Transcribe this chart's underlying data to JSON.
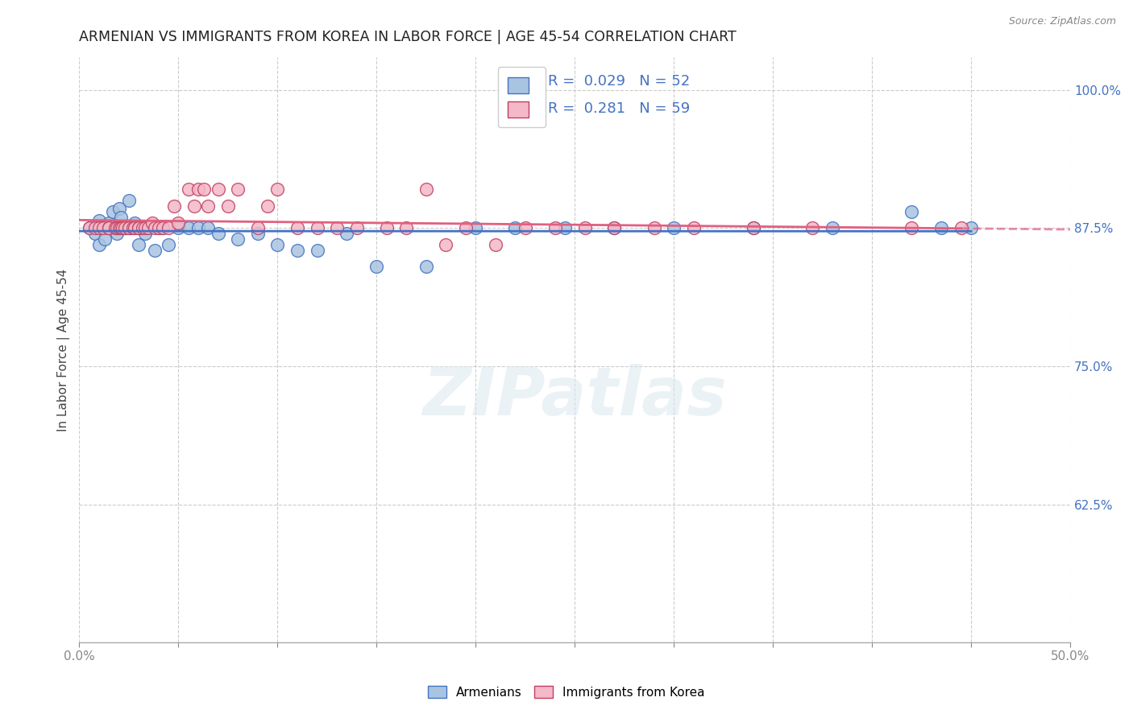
{
  "title": "ARMENIAN VS IMMIGRANTS FROM KOREA IN LABOR FORCE | AGE 45-54 CORRELATION CHART",
  "source": "Source: ZipAtlas.com",
  "ylabel": "In Labor Force | Age 45-54",
  "xlim": [
    0.0,
    0.5
  ],
  "ylim": [
    0.5,
    1.03
  ],
  "xticks": [
    0.0,
    0.05,
    0.1,
    0.15,
    0.2,
    0.25,
    0.3,
    0.35,
    0.4,
    0.45,
    0.5
  ],
  "xticklabels": [
    "0.0%",
    "",
    "",
    "",
    "",
    "",
    "",
    "",
    "",
    "",
    "50.0%"
  ],
  "yticks_right": [
    0.625,
    0.75,
    0.875,
    1.0
  ],
  "ytick_labels_right": [
    "62.5%",
    "75.0%",
    "87.5%",
    "100.0%"
  ],
  "blue_R": "0.029",
  "blue_N": "52",
  "pink_R": "0.281",
  "pink_N": "59",
  "blue_color": "#a8c4e0",
  "pink_color": "#f4b8c8",
  "blue_line_color": "#4472c4",
  "pink_line_color": "#e06080",
  "blue_edge_color": "#4472c4",
  "pink_edge_color": "#c04060",
  "legend_label_blue": "Armenians",
  "legend_label_pink": "Immigrants from Korea",
  "watermark": "ZIPatlas",
  "title_color": "#222222",
  "axis_color": "#4472c4",
  "background_color": "#ffffff",
  "grid_color": "#cccccc",
  "blue_scatter_x": [
    0.005,
    0.008,
    0.01,
    0.01,
    0.012,
    0.013,
    0.015,
    0.015,
    0.017,
    0.018,
    0.019,
    0.02,
    0.02,
    0.021,
    0.022,
    0.023,
    0.025,
    0.025,
    0.027,
    0.028,
    0.03,
    0.03,
    0.032,
    0.033,
    0.035,
    0.038,
    0.04,
    0.042,
    0.045,
    0.05,
    0.055,
    0.06,
    0.065,
    0.07,
    0.08,
    0.09,
    0.1,
    0.11,
    0.12,
    0.135,
    0.15,
    0.175,
    0.2,
    0.22,
    0.245,
    0.27,
    0.3,
    0.34,
    0.38,
    0.42,
    0.435,
    0.45
  ],
  "blue_scatter_y": [
    0.875,
    0.87,
    0.882,
    0.86,
    0.875,
    0.865,
    0.875,
    0.88,
    0.89,
    0.875,
    0.87,
    0.893,
    0.875,
    0.885,
    0.875,
    0.875,
    0.9,
    0.875,
    0.875,
    0.88,
    0.875,
    0.86,
    0.875,
    0.87,
    0.875,
    0.855,
    0.875,
    0.875,
    0.86,
    0.875,
    0.875,
    0.875,
    0.875,
    0.87,
    0.865,
    0.87,
    0.86,
    0.855,
    0.855,
    0.87,
    0.84,
    0.84,
    0.875,
    0.875,
    0.875,
    0.875,
    0.875,
    0.875,
    0.875,
    0.89,
    0.875,
    0.875
  ],
  "pink_scatter_x": [
    0.005,
    0.008,
    0.01,
    0.012,
    0.015,
    0.015,
    0.018,
    0.019,
    0.02,
    0.021,
    0.022,
    0.023,
    0.025,
    0.025,
    0.027,
    0.028,
    0.03,
    0.03,
    0.032,
    0.033,
    0.035,
    0.037,
    0.038,
    0.04,
    0.042,
    0.045,
    0.048,
    0.05,
    0.055,
    0.058,
    0.06,
    0.063,
    0.065,
    0.07,
    0.075,
    0.08,
    0.09,
    0.095,
    0.1,
    0.11,
    0.12,
    0.13,
    0.14,
    0.155,
    0.165,
    0.175,
    0.185,
    0.195,
    0.21,
    0.225,
    0.24,
    0.255,
    0.27,
    0.29,
    0.31,
    0.34,
    0.37,
    0.42,
    0.445
  ],
  "pink_scatter_y": [
    0.875,
    0.875,
    0.875,
    0.875,
    0.875,
    0.875,
    0.875,
    0.875,
    0.875,
    0.875,
    0.875,
    0.875,
    0.875,
    0.875,
    0.875,
    0.875,
    0.875,
    0.875,
    0.875,
    0.875,
    0.875,
    0.88,
    0.875,
    0.875,
    0.875,
    0.875,
    0.895,
    0.88,
    0.91,
    0.895,
    0.91,
    0.91,
    0.895,
    0.91,
    0.895,
    0.91,
    0.875,
    0.895,
    0.91,
    0.875,
    0.875,
    0.875,
    0.875,
    0.875,
    0.875,
    0.91,
    0.86,
    0.875,
    0.86,
    0.875,
    0.875,
    0.875,
    0.875,
    0.875,
    0.875,
    0.875,
    0.875,
    0.875,
    0.875
  ]
}
